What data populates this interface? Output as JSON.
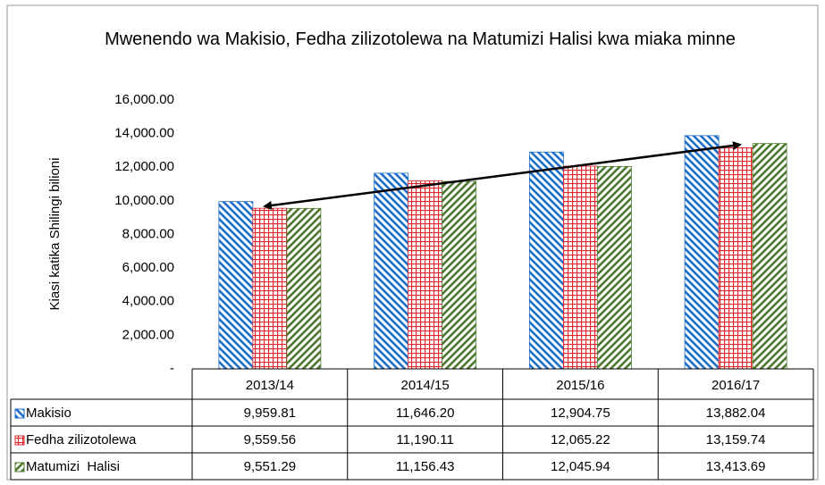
{
  "chart_data": {
    "type": "bar",
    "title": "Mwenendo wa Makisio, Fedha zilizotolewa na Matumizi Halisi kwa miaka minne",
    "y_label": "Kiasi katika Shilingi bilioni",
    "categories": [
      "2013/14",
      "2014/15",
      "2015/16",
      "2016/17"
    ],
    "series": [
      {
        "name": "Makisio",
        "color": "#1f6fc9",
        "pattern": "diagonal",
        "values": [
          9959.81,
          11646.2,
          12904.75,
          13882.04
        ],
        "value_labels": [
          "9,959.81",
          "11,646.20",
          "12,904.75",
          "13,882.04"
        ]
      },
      {
        "name": "Fedha zilizotolewa",
        "color": "#e0262b",
        "pattern": "grid",
        "values": [
          9559.56,
          11190.11,
          12065.22,
          13159.74
        ],
        "value_labels": [
          "9,559.56",
          "11,190.11",
          "12,065.22",
          "13,159.74"
        ]
      },
      {
        "name": "Matumizi  Halisi",
        "color": "#4d7a2e",
        "pattern": "diagonal-reverse",
        "values": [
          9551.29,
          11156.43,
          12045.94,
          13413.69
        ],
        "value_labels": [
          "9,551.29",
          "11,156.43",
          "12,045.94",
          "13,413.69"
        ]
      }
    ],
    "ylim": [
      0,
      16000
    ],
    "yticks": [
      {
        "value": 0,
        "label": "-"
      },
      {
        "value": 2000,
        "label": "2,000.00"
      },
      {
        "value": 4000,
        "label": "4,000.00"
      },
      {
        "value": 6000,
        "label": "6,000.00"
      },
      {
        "value": 8000,
        "label": "8,000.00"
      },
      {
        "value": 10000,
        "label": "10,000.00"
      },
      {
        "value": 12000,
        "label": "12,000.00"
      },
      {
        "value": 14000,
        "label": "14,000.00"
      },
      {
        "value": 16000,
        "label": "16,000.00"
      }
    ],
    "grid": false
  }
}
